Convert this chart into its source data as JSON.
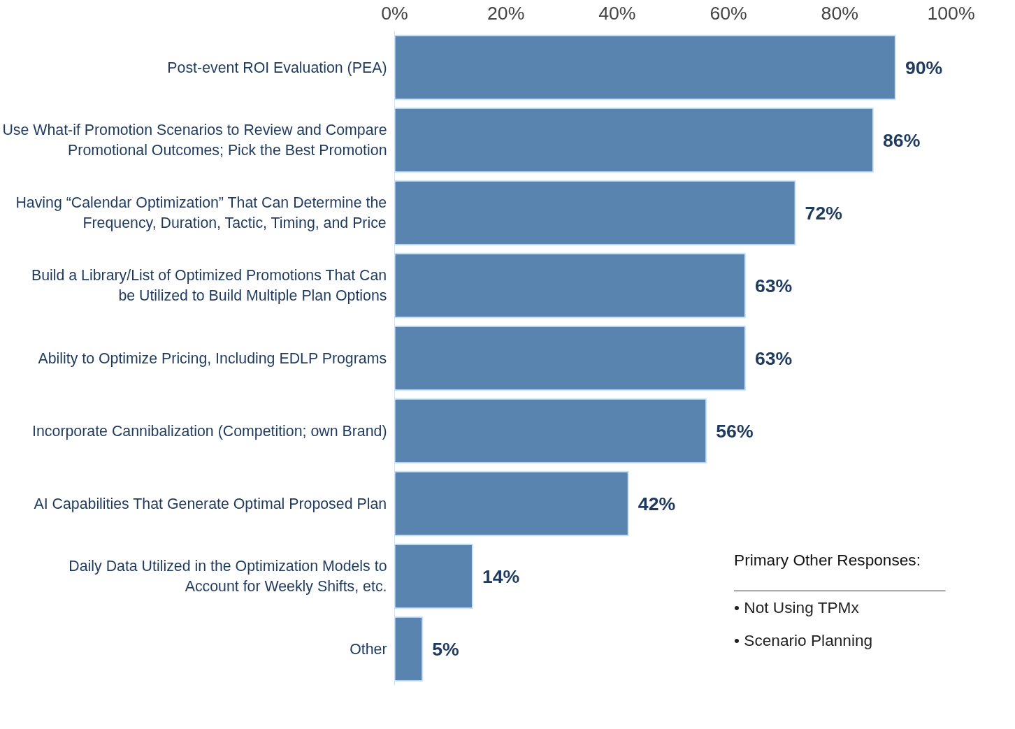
{
  "chart_data": {
    "type": "bar",
    "orientation": "horizontal",
    "categories": [
      "Post-event ROI Evaluation (PEA)",
      "Use What-if Promotion Scenarios to Review and Compare Promotional Outcomes; Pick the Best Promotion",
      "Having “Calendar Optimization” That Can Determine the Frequency, Duration, Tactic, Timing, and Price",
      "Build a Library/List of Optimized Promotions That Can be Utilized to Build Multiple Plan Options",
      "Ability to Optimize Pricing, Including EDLP Programs",
      "Incorporate Cannibalization (Competition; own Brand)",
      "AI Capabilities That Generate Optimal Proposed Plan",
      "Daily Data Utilized in the Optimization Models to Account for Weekly Shifts, etc.",
      "Other"
    ],
    "values": [
      90,
      86,
      72,
      63,
      63,
      56,
      42,
      14,
      5
    ],
    "color": "#5a84b0",
    "value_labels": [
      "90%",
      "86%",
      "72%",
      "63%",
      "63%",
      "56%",
      "42%",
      "14%",
      "5%"
    ],
    "xlim": [
      0,
      100
    ],
    "xticks": [
      {
        "value": 0,
        "label": "0%"
      },
      {
        "value": 20,
        "label": "20%"
      },
      {
        "value": 40,
        "label": "40%"
      },
      {
        "value": 60,
        "label": "60%"
      },
      {
        "value": 80,
        "label": "80%"
      },
      {
        "value": 100,
        "label": "100%"
      }
    ],
    "grid": false,
    "annotations": [
      "Primary Other Responses:",
      "• Not Using TPMx",
      "• Scenario Planning"
    ]
  }
}
